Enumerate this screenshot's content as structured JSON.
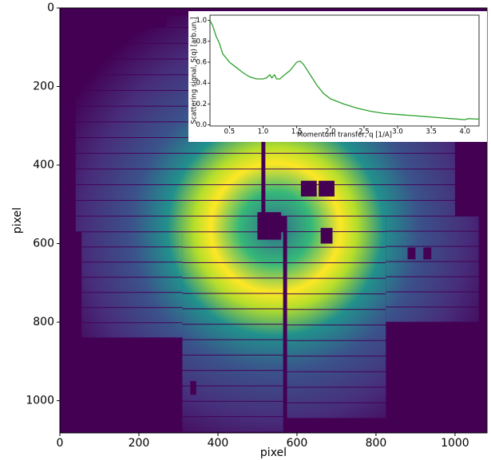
{
  "chart_data": [
    {
      "type": "image",
      "xlabel": "pixel",
      "ylabel": "pixel",
      "xlim": [
        0,
        1081
      ],
      "ylim": [
        1082,
        0
      ],
      "xticks": [
        0,
        200,
        400,
        600,
        800,
        1000
      ],
      "yticks": [
        0,
        200,
        400,
        600,
        800,
        1000
      ]
    },
    {
      "type": "line",
      "xlabel": "Momentum transfer, q [1/A]",
      "ylabel": "Scattering signal, S(q) [arb.un.]",
      "color": "#2ca02c",
      "x": [
        0.21,
        0.25,
        0.3,
        0.35,
        0.4,
        0.5,
        0.6,
        0.7,
        0.8,
        0.9,
        1.0,
        1.05,
        1.1,
        1.13,
        1.17,
        1.2,
        1.25,
        1.3,
        1.4,
        1.5,
        1.55,
        1.6,
        1.7,
        1.8,
        1.9,
        2.0,
        2.2,
        2.4,
        2.6,
        2.8,
        3.0,
        3.2,
        3.4,
        3.6,
        3.8,
        4.0,
        4.05,
        4.21
      ],
      "values": [
        1.0,
        0.95,
        0.85,
        0.78,
        0.68,
        0.6,
        0.55,
        0.5,
        0.46,
        0.44,
        0.44,
        0.45,
        0.48,
        0.45,
        0.48,
        0.44,
        0.44,
        0.47,
        0.52,
        0.6,
        0.61,
        0.58,
        0.48,
        0.38,
        0.3,
        0.25,
        0.2,
        0.16,
        0.13,
        0.11,
        0.1,
        0.09,
        0.08,
        0.07,
        0.06,
        0.05,
        0.06,
        0.055
      ],
      "xlim": [
        0.21,
        4.21
      ],
      "ylim": [
        -0.01,
        1.05
      ],
      "xticks": [
        0.5,
        {
          "value": 1,
          "label": "1.0"
        },
        1.5,
        {
          "value": 2,
          "label": "2.0"
        },
        2.5,
        {
          "value": 3,
          "label": "3.0"
        },
        3.5,
        {
          "value": 4,
          "label": "4.0"
        }
      ],
      "yticks": [
        {
          "value": 0,
          "label": "0.0"
        },
        0.2,
        0.4,
        0.6,
        0.8,
        {
          "value": 1,
          "label": "1.0"
        }
      ]
    }
  ]
}
